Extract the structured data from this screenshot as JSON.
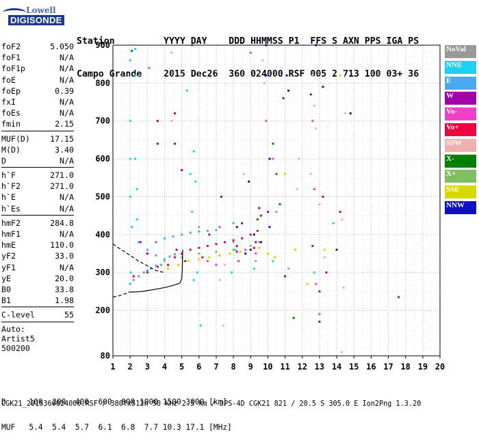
{
  "logo": {
    "line1": "Lowell",
    "line2": "DIGISONDE"
  },
  "header": {
    "line1": "Station         YYYY DAY    DDD HHMMSS P1  FFS S AXN PPS IGA PS",
    "line2": "Campo Grande    2015 Dec26  360 024000 RSF 005 2 713 100 03+ 36"
  },
  "params": {
    "group1": [
      {
        "label": "foF2",
        "value": "5.050"
      },
      {
        "label": "foF1",
        "value": "N/A"
      },
      {
        "label": "foF1p",
        "value": "N/A"
      },
      {
        "label": "foE",
        "value": "N/A"
      },
      {
        "label": "foEp",
        "value": "0.39"
      },
      {
        "label": "fxI",
        "value": "N/A"
      },
      {
        "label": "foEs",
        "value": "N/A"
      },
      {
        "label": "fmin",
        "value": "2.15"
      }
    ],
    "group2": [
      {
        "label": "MUF(D)",
        "value": "17.15"
      },
      {
        "label": "M(D)",
        "value": "3.40"
      },
      {
        "label": "D",
        "value": "N/A"
      }
    ],
    "group3": [
      {
        "label": "h`F",
        "value": "271.0"
      },
      {
        "label": "h`F2",
        "value": "271.0"
      },
      {
        "label": "h`E",
        "value": "N/A"
      },
      {
        "label": "h`Es",
        "value": "N/A"
      }
    ],
    "group4": [
      {
        "label": "hmF2",
        "value": "284.8"
      },
      {
        "label": "hmF1",
        "value": "N/A"
      },
      {
        "label": "hmE",
        "value": "110.0"
      },
      {
        "label": "yF2",
        "value": "33.0"
      },
      {
        "label": "yF1",
        "value": "N/A"
      },
      {
        "label": "yE",
        "value": "20.0"
      },
      {
        "label": "B0",
        "value": "33.8"
      },
      {
        "label": "B1",
        "value": "1.98"
      }
    ],
    "group5": [
      {
        "label": "C-level",
        "value": "55"
      }
    ],
    "auto": [
      "Auto:",
      "Artist5",
      "500200"
    ]
  },
  "legend": [
    {
      "label": "NoVal",
      "color": "#999999"
    },
    {
      "label": "NNE",
      "color": "#1fd1f0"
    },
    {
      "label": "E",
      "color": "#4aa8f0"
    },
    {
      "label": "W",
      "color": "#a000a8"
    },
    {
      "label": "Vo-",
      "color": "#f040c8"
    },
    {
      "label": "Vo+",
      "color": "#f00040"
    },
    {
      "label": "SSW",
      "color": "#f0b0b0"
    },
    {
      "label": "X-",
      "color": "#008000"
    },
    {
      "label": "X+",
      "color": "#80c060"
    },
    {
      "label": "SSE",
      "color": "#d8d800"
    },
    {
      "label": "NNW",
      "color": "#1010c0"
    }
  ],
  "footer": {
    "d_line": "D     100  200  400  600  800 1000 1500 3000 [km]",
    "muf_line": "MUF   5.4  5.4  5.7  6.1  6.8  7.7 10.3 17.1 [MHz]",
    "file_line": "CGK21_2015360024000.RSF / 380fx512h 50 kHz 2.5 km / DPS-4D CGK21 821 / 20.5 S 305.0 E Ion2Png 1.3.20"
  },
  "chart_data": {
    "type": "scatter",
    "title": "",
    "xlabel": "",
    "ylabel": "",
    "xlim": [
      1,
      20
    ],
    "ylim": [
      80,
      900
    ],
    "x_ticks": [
      1,
      2,
      3,
      4,
      5,
      6,
      7,
      8,
      9,
      10,
      11,
      12,
      13,
      14,
      15,
      16,
      17,
      18,
      19,
      20
    ],
    "y_ticks": [
      80,
      200,
      300,
      400,
      500,
      600,
      700,
      800,
      900
    ],
    "grid": true,
    "legend_placement": "right",
    "traces": [
      {
        "name": "profile-upper",
        "color": "#000000",
        "style": "dashed",
        "x": [
          1.0,
          1.5,
          2.0,
          2.5,
          3.0,
          3.5,
          4.0
        ],
        "y": [
          375,
          360,
          345,
          330,
          318,
          305,
          300
        ]
      },
      {
        "name": "profile-lower",
        "color": "#000000",
        "style": "dashed",
        "x": [
          1.0,
          1.3,
          1.6,
          1.9
        ],
        "y": [
          235,
          238,
          242,
          247
        ]
      },
      {
        "name": "profile-bottom",
        "color": "#000000",
        "style": "solid",
        "x": [
          1.9,
          2.5,
          3.0,
          3.5,
          4.0,
          4.5,
          4.9,
          5.0,
          5.02,
          5.04,
          5.05
        ],
        "y": [
          248,
          249,
          252,
          256,
          260,
          266,
          272,
          285,
          300,
          325,
          360
        ]
      }
    ],
    "series": [
      {
        "name": "NNE",
        "color": "#1fd1f0",
        "points": [
          [
            2.0,
            860
          ],
          [
            2.0,
            700
          ],
          [
            2.0,
            600
          ],
          [
            2.0,
            500
          ],
          [
            2.05,
            300
          ],
          [
            2.1,
            420
          ],
          [
            2.3,
            890
          ],
          [
            2.3,
            820
          ],
          [
            2.3,
            600
          ],
          [
            2.4,
            520
          ],
          [
            2.4,
            440
          ],
          [
            5.3,
            780
          ],
          [
            5.5,
            560
          ],
          [
            5.6,
            460
          ],
          [
            5.7,
            280
          ],
          [
            5.7,
            620
          ],
          [
            5.8,
            540
          ],
          [
            5.9,
            300
          ],
          [
            6.1,
            160
          ],
          [
            7.9,
            300
          ],
          [
            8.0,
            430
          ],
          [
            8.1,
            360
          ],
          [
            9.2,
            310
          ],
          [
            10.3,
            330
          ],
          [
            10.5,
            460
          ],
          [
            12.7,
            300
          ],
          [
            13.8,
            430
          ]
        ]
      },
      {
        "name": "E",
        "color": "#4aa8f0",
        "points": [
          [
            2.0,
            270
          ],
          [
            2.2,
            280
          ],
          [
            2.5,
            290
          ],
          [
            2.8,
            300
          ],
          [
            3.0,
            305
          ],
          [
            3.2,
            310
          ],
          [
            3.5,
            318
          ],
          [
            3.8,
            320
          ],
          [
            4.0,
            390
          ],
          [
            4.5,
            395
          ],
          [
            5.0,
            400
          ],
          [
            5.5,
            405
          ],
          [
            6.0,
            408
          ],
          [
            6.5,
            410
          ],
          [
            7.0,
            412
          ],
          [
            2.5,
            380
          ],
          [
            3.0,
            360
          ],
          [
            3.5,
            345
          ],
          [
            4.0,
            335
          ],
          [
            4.3,
            342
          ],
          [
            4.6,
            348
          ]
        ]
      },
      {
        "name": "W",
        "color": "#a000a8",
        "points": [
          [
            2.6,
            380
          ],
          [
            3.0,
            350
          ],
          [
            3.6,
            700
          ],
          [
            3.6,
            640
          ],
          [
            4.6,
            720
          ],
          [
            4.6,
            640
          ],
          [
            4.7,
            360
          ],
          [
            5.0,
            570
          ],
          [
            6.6,
            400
          ],
          [
            7.3,
            500
          ],
          [
            8.2,
            370
          ],
          [
            8.5,
            430
          ],
          [
            9.3,
            380
          ],
          [
            9.5,
            470
          ],
          [
            10.0,
            460
          ],
          [
            10.9,
            760
          ],
          [
            11.0,
            290
          ],
          [
            12.5,
            770
          ],
          [
            13.0,
            250
          ],
          [
            13.0,
            170
          ],
          [
            13.2,
            500
          ],
          [
            13.4,
            300
          ],
          [
            14.2,
            460
          ]
        ]
      },
      {
        "name": "Vo-",
        "color": "#f040c8",
        "points": [
          [
            3.1,
            840
          ],
          [
            3.5,
            380
          ],
          [
            5.6,
            900
          ],
          [
            6.5,
            330
          ],
          [
            7.0,
            320
          ],
          [
            7.2,
            420
          ],
          [
            8.3,
            330
          ],
          [
            8.7,
            360
          ],
          [
            9.0,
            880
          ],
          [
            9.3,
            350
          ],
          [
            9.9,
            700
          ],
          [
            10.3,
            600
          ],
          [
            12.6,
            700
          ],
          [
            12.7,
            520
          ],
          [
            12.8,
            270
          ],
          [
            13.0,
            190
          ]
        ]
      },
      {
        "name": "Vo+",
        "color": "#f00040",
        "points": [
          [
            4.6,
            340
          ],
          [
            5.0,
            350
          ],
          [
            5.5,
            360
          ],
          [
            6.0,
            365
          ],
          [
            6.5,
            370
          ],
          [
            7.0,
            375
          ],
          [
            7.5,
            380
          ],
          [
            8.0,
            385
          ],
          [
            8.5,
            390
          ],
          [
            9.0,
            400
          ],
          [
            9.4,
            410
          ],
          [
            9.6,
            450
          ],
          [
            4.2,
            320
          ],
          [
            5.2,
            330
          ],
          [
            6.2,
            340
          ],
          [
            7.2,
            345
          ],
          [
            8.2,
            355
          ],
          [
            9.2,
            365
          ],
          [
            2.2,
            290
          ],
          [
            3.0,
            300
          ],
          [
            3.6,
            315
          ]
        ]
      },
      {
        "name": "SSW",
        "color": "#f0b0b0",
        "points": [
          [
            4.4,
            880
          ],
          [
            4.4,
            700
          ],
          [
            7.2,
            280
          ],
          [
            7.4,
            160
          ],
          [
            7.5,
            320
          ],
          [
            8.6,
            560
          ],
          [
            9.7,
            860
          ],
          [
            9.8,
            800
          ],
          [
            11.7,
            520
          ],
          [
            11.8,
            600
          ],
          [
            12.5,
            560
          ],
          [
            12.6,
            820
          ],
          [
            12.7,
            740
          ],
          [
            12.8,
            680
          ],
          [
            13.0,
            480
          ],
          [
            13.0,
            900
          ],
          [
            13.3,
            340
          ],
          [
            14.3,
            440
          ],
          [
            14.4,
            260
          ],
          [
            14.5,
            720
          ],
          [
            14.3,
            90
          ]
        ]
      },
      {
        "name": "X-",
        "color": "#008000",
        "points": [
          [
            2.1,
            885
          ],
          [
            9.4,
            440
          ],
          [
            10.3,
            640
          ],
          [
            10.5,
            560
          ],
          [
            10.7,
            480
          ],
          [
            11.5,
            180
          ],
          [
            12.6,
            370
          ],
          [
            17.6,
            235
          ]
        ]
      },
      {
        "name": "X+",
        "color": "#80c060",
        "points": [
          [
            4.0,
            330
          ],
          [
            5.0,
            340
          ],
          [
            6.0,
            350
          ],
          [
            7.0,
            355
          ],
          [
            8.0,
            360
          ],
          [
            9.0,
            370
          ],
          [
            9.5,
            380
          ],
          [
            6.0,
            420
          ],
          [
            8.0,
            380
          ],
          [
            9.3,
            330
          ],
          [
            10.5,
            460
          ],
          [
            11.2,
            310
          ]
        ]
      },
      {
        "name": "SSE",
        "color": "#d8d800",
        "points": [
          [
            4.2,
            310
          ],
          [
            4.8,
            320
          ],
          [
            5.4,
            330
          ],
          [
            6.0,
            335
          ],
          [
            6.6,
            340
          ],
          [
            7.2,
            345
          ],
          [
            7.8,
            350
          ],
          [
            8.4,
            355
          ],
          [
            9.0,
            360
          ],
          [
            9.5,
            365
          ],
          [
            10.0,
            350
          ],
          [
            10.4,
            340
          ],
          [
            11.0,
            560
          ],
          [
            11.6,
            360
          ],
          [
            12.3,
            270
          ],
          [
            13.3,
            360
          ],
          [
            14.2,
            820
          ]
        ]
      },
      {
        "name": "NNW",
        "color": "#1010c0",
        "points": [
          [
            8.2,
            420
          ],
          [
            8.7,
            350
          ],
          [
            8.9,
            540
          ],
          [
            9.0,
            360
          ],
          [
            9.2,
            400
          ],
          [
            9.6,
            380
          ],
          [
            9.9,
            900
          ],
          [
            9.9,
            820
          ],
          [
            10.1,
            600
          ],
          [
            10.1,
            420
          ],
          [
            11.1,
            820
          ],
          [
            11.2,
            780
          ],
          [
            12.8,
            900
          ],
          [
            13.2,
            790
          ],
          [
            14.0,
            360
          ],
          [
            14.8,
            720
          ]
        ]
      }
    ]
  }
}
